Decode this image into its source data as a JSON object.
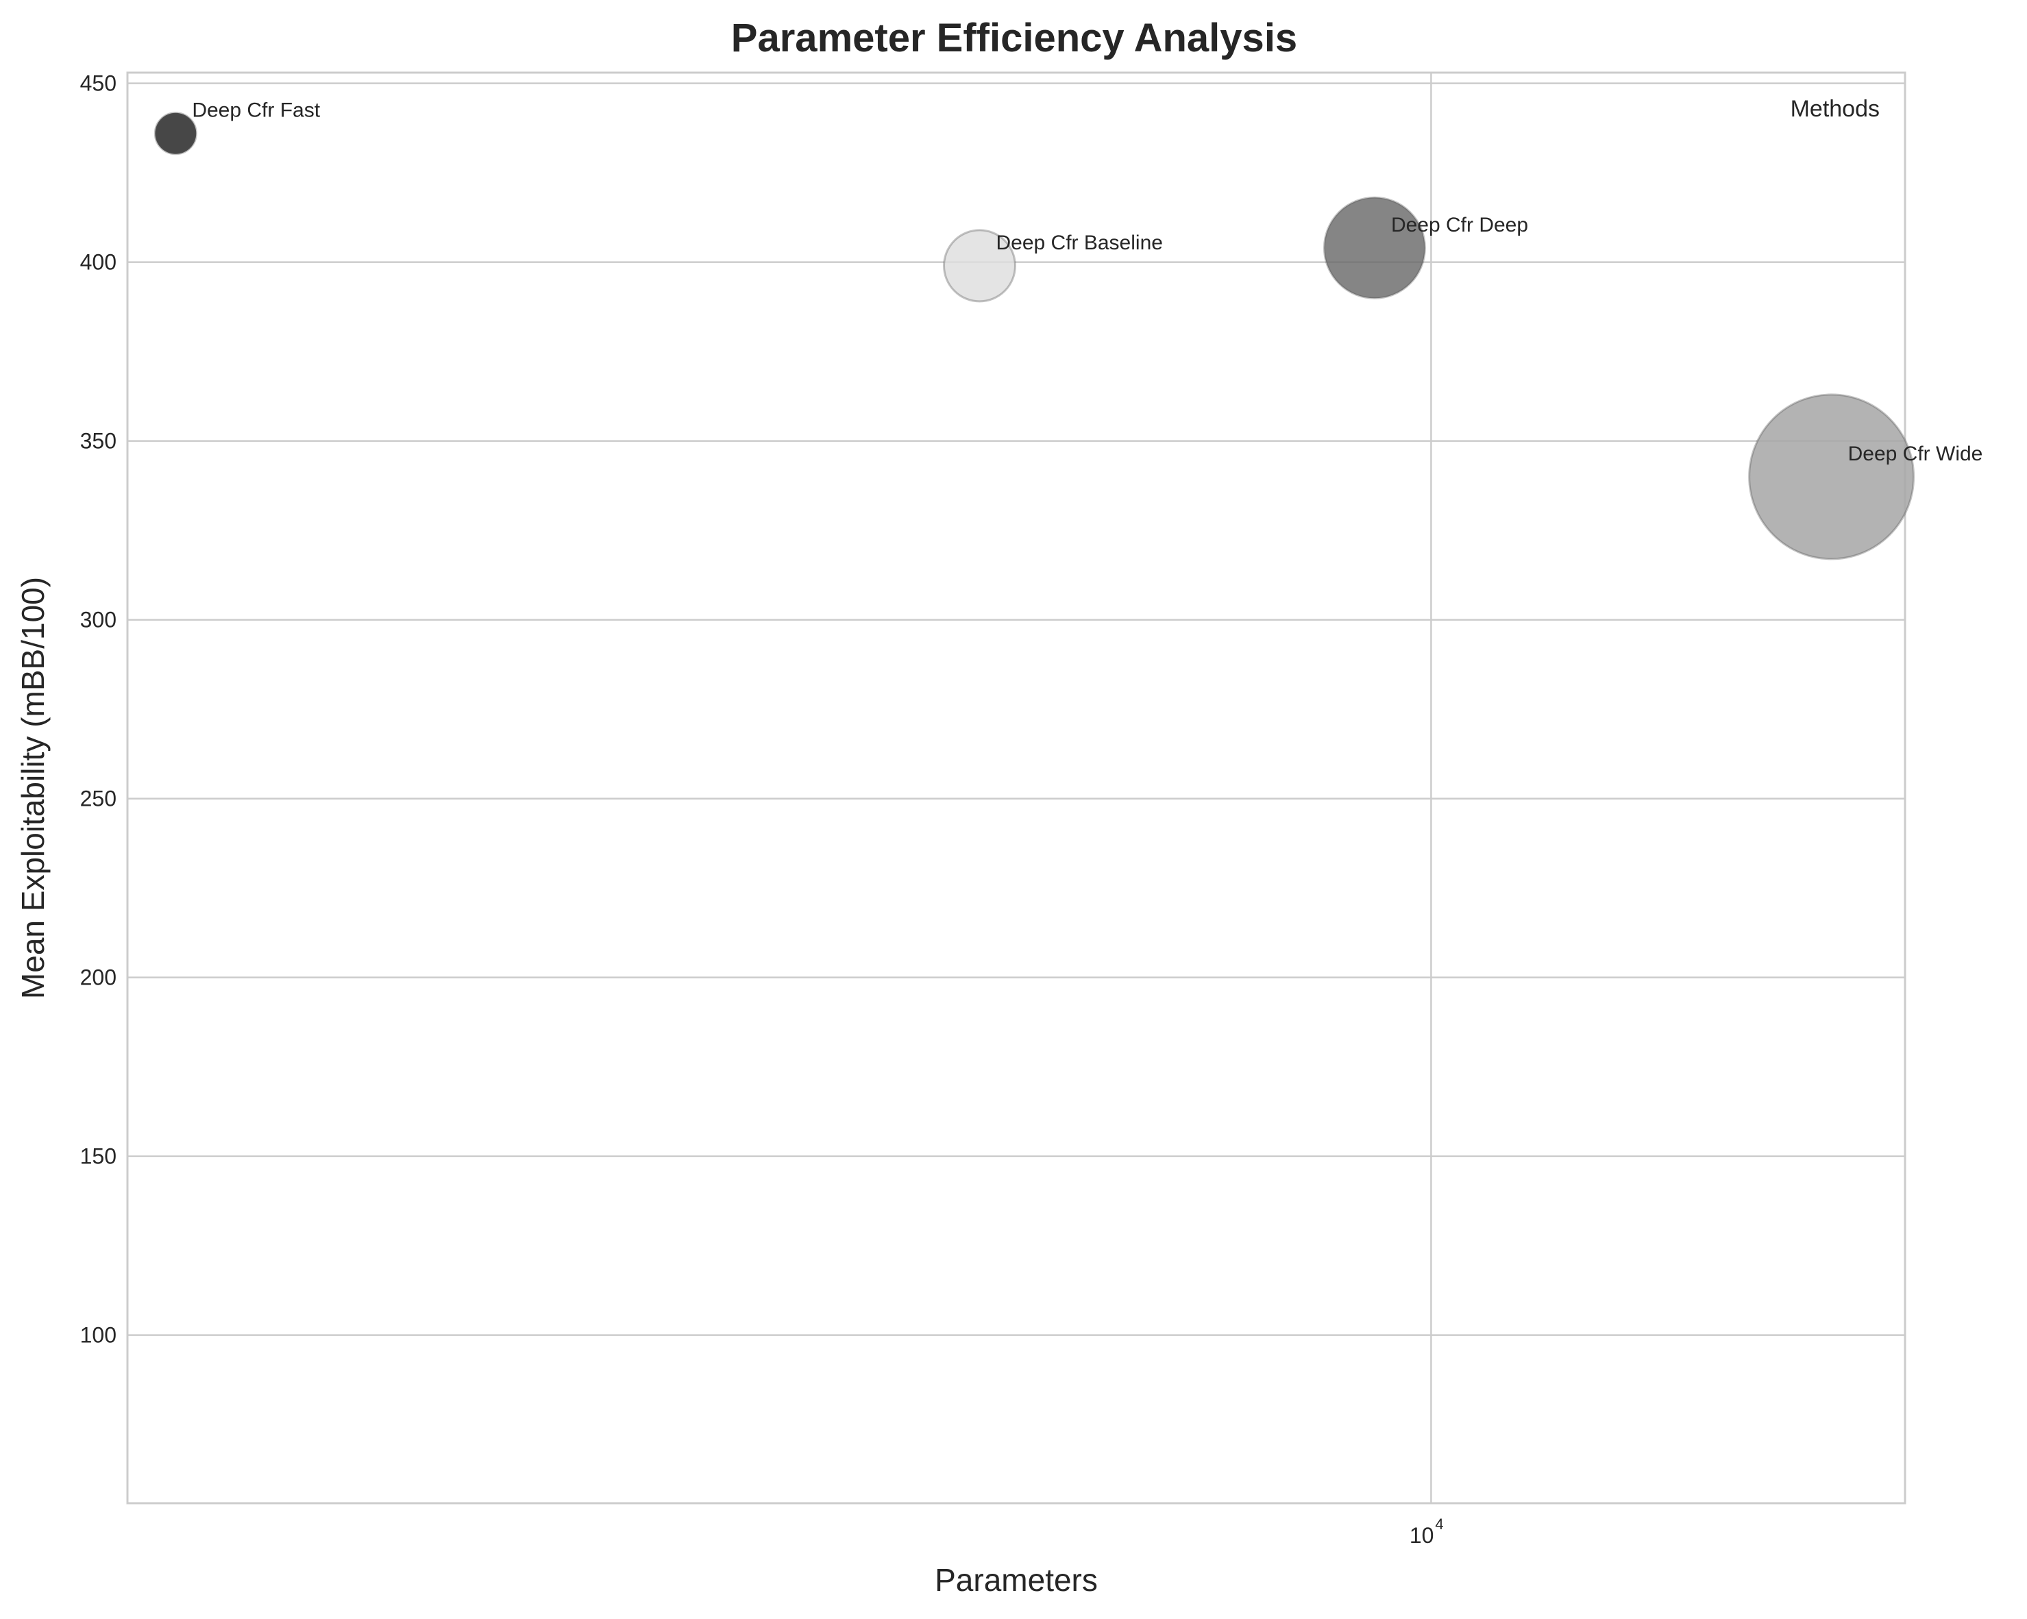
{
  "chart_data": {
    "type": "scatter",
    "title": "Parameter Efficiency Analysis",
    "xlabel": "Parameters",
    "ylabel": "Mean Exploitability (mBB/100)",
    "xscale": "log",
    "xlim": [
      2400,
      16800
    ],
    "ylim": [
      53,
      453
    ],
    "x_ticks": [
      {
        "value": 10000,
        "base": "10",
        "exp": "4"
      }
    ],
    "y_ticks": [
      100,
      150,
      200,
      250,
      300,
      350,
      400,
      450
    ],
    "grid": true,
    "legend_title": "Methods",
    "legend_placement": "top-right",
    "points": [
      {
        "label": "Deep Cfr Fast",
        "x": 2530,
        "y": 436,
        "size": 1,
        "color": "#333333",
        "opacity": 0.9
      },
      {
        "label": "Deep Cfr Baseline",
        "x": 6100,
        "y": 399,
        "size": 3,
        "color": "#dddddd",
        "opacity": 0.8
      },
      {
        "label": "Deep Cfr Deep",
        "x": 9400,
        "y": 404,
        "size": 6,
        "color": "#666666",
        "opacity": 0.8
      },
      {
        "label": "Deep Cfr Wide",
        "x": 15500,
        "y": 340,
        "size": 16,
        "color": "#a6a6a6",
        "opacity": 0.85
      }
    ]
  }
}
